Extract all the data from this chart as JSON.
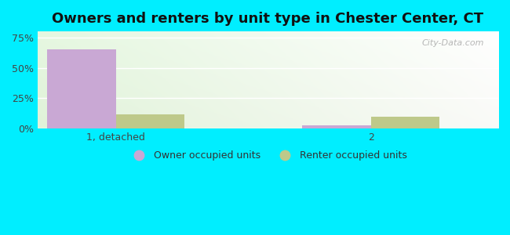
{
  "title": "Owners and renters by unit type in Chester Center, CT",
  "categories": [
    "1, detached",
    "2"
  ],
  "owner_values": [
    65.0,
    3.0
  ],
  "renter_values": [
    12.0,
    10.0
  ],
  "owner_color": "#c9a8d4",
  "renter_color": "#bec98a",
  "yticks": [
    0,
    25,
    50,
    75
  ],
  "ytick_labels": [
    "0%",
    "25%",
    "50%",
    "75%"
  ],
  "ylim": [
    0,
    80
  ],
  "bar_width": 0.35,
  "background_color": "#00eeff",
  "legend_owner": "Owner occupied units",
  "legend_renter": "Renter occupied units",
  "title_fontsize": 13,
  "axis_fontsize": 9,
  "legend_fontsize": 9,
  "watermark": "City-Data.com",
  "group_positions": [
    0.35,
    1.65
  ],
  "xlim": [
    -0.05,
    2.3
  ]
}
